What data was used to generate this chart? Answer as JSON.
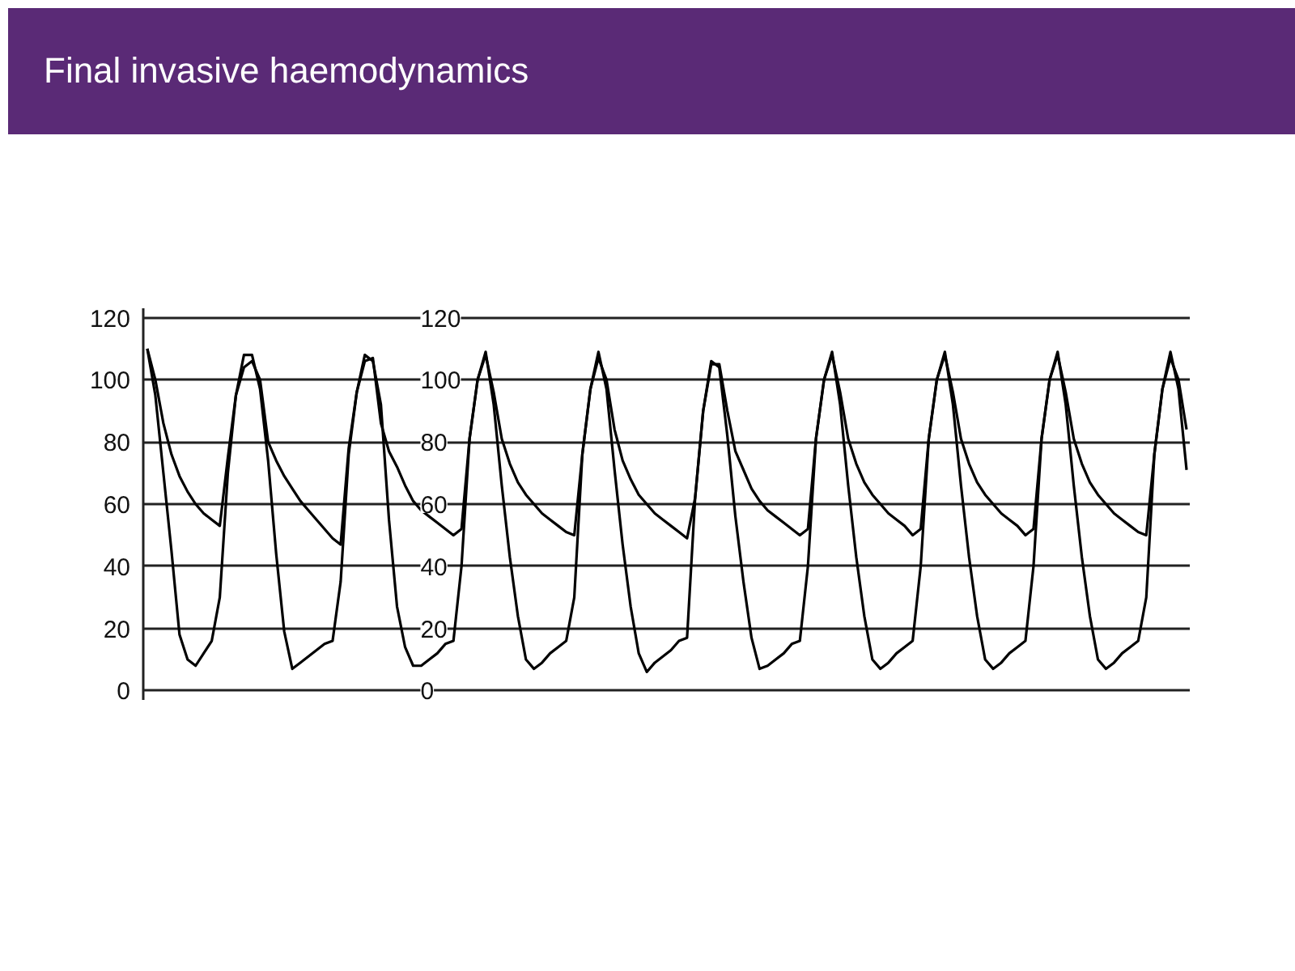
{
  "chart_data": {
    "type": "line",
    "title": "Final invasive haemodynamics",
    "categories": [
      null,
      null,
      null,
      null,
      null,
      null,
      null,
      null,
      null,
      null,
      null,
      null,
      null,
      null,
      null,
      null,
      null,
      null,
      null,
      null,
      null,
      null,
      null,
      null,
      null,
      null,
      null,
      null,
      null,
      null,
      null,
      null,
      null,
      null,
      null,
      null,
      null,
      null,
      null,
      null,
      null,
      null,
      null,
      null,
      null,
      null,
      null,
      null,
      null,
      null,
      null,
      null,
      null,
      null,
      null,
      null,
      null,
      null,
      null,
      null,
      null,
      null,
      null,
      null,
      null,
      null,
      null,
      null,
      null,
      null,
      null,
      null,
      null,
      null,
      null,
      null,
      null,
      null,
      null,
      null,
      null,
      null,
      null,
      null,
      null,
      null,
      null,
      null,
      null,
      null,
      null,
      null,
      null,
      null,
      null,
      null,
      null,
      null,
      null,
      null,
      null,
      null,
      null,
      null,
      null,
      null,
      null,
      null,
      null,
      null,
      null,
      null,
      null,
      null,
      null,
      null,
      null,
      null,
      null,
      null,
      null,
      null,
      null,
      null,
      null,
      null,
      null,
      null,
      null,
      null
    ],
    "series": [
      {
        "color": "#000000",
        "values": [
          110,
          95,
          70,
          45,
          18,
          10,
          8,
          12,
          16,
          30,
          70,
          95,
          108,
          108,
          97,
          74,
          44,
          19,
          7,
          9,
          11,
          13,
          15,
          16,
          35,
          76,
          96,
          108,
          106,
          92,
          55,
          27,
          14,
          8,
          8,
          10,
          12,
          15,
          16,
          40,
          81,
          100,
          109,
          92,
          66,
          43,
          24,
          10,
          7,
          9,
          12,
          14,
          16,
          30,
          76,
          97,
          109,
          97,
          71,
          47,
          27,
          12,
          6,
          9,
          11,
          13,
          16,
          17,
          62,
          90,
          106,
          104,
          82,
          56,
          35,
          17,
          7,
          8,
          10,
          12,
          15,
          16,
          40,
          81,
          100,
          109,
          92,
          66,
          43,
          24,
          10,
          7,
          9,
          12,
          14,
          16,
          40,
          81,
          100,
          109,
          92,
          66,
          43,
          24,
          10,
          7,
          9,
          12,
          14,
          16,
          40,
          81,
          100,
          109,
          92,
          66,
          43,
          24,
          10,
          7,
          9,
          12,
          14,
          16,
          30,
          76,
          97,
          109,
          97,
          71
        ]
      },
      {
        "color": "#000000",
        "values": [
          110,
          100,
          86,
          76,
          69,
          64,
          60,
          57,
          55,
          53,
          75,
          95,
          104,
          106,
          100,
          80,
          74,
          69,
          65,
          61,
          58,
          55,
          52,
          49,
          47,
          78,
          96,
          106,
          107,
          86,
          77,
          72,
          66,
          61,
          58,
          56,
          54,
          52,
          50,
          52,
          81,
          100,
          108,
          96,
          81,
          73,
          67,
          63,
          60,
          57,
          55,
          53,
          51,
          50,
          76,
          97,
          107,
          100,
          84,
          74,
          68,
          63,
          60,
          57,
          55,
          53,
          51,
          49,
          62,
          90,
          105,
          105,
          90,
          77,
          71,
          65,
          61,
          58,
          56,
          54,
          52,
          50,
          52,
          81,
          100,
          108,
          96,
          81,
          73,
          67,
          63,
          60,
          57,
          55,
          53,
          50,
          52,
          81,
          100,
          108,
          96,
          81,
          73,
          67,
          63,
          60,
          57,
          55,
          53,
          50,
          52,
          81,
          100,
          108,
          96,
          81,
          73,
          67,
          63,
          60,
          57,
          55,
          53,
          51,
          50,
          76,
          97,
          107,
          100,
          84
        ]
      }
    ],
    "ylim": [
      -3,
      123
    ],
    "yticks": [
      0,
      20,
      40,
      60,
      80,
      100,
      120
    ],
    "y2lim": [
      -3,
      123
    ],
    "y2ticks": [
      0,
      20,
      40,
      60,
      80,
      100,
      120
    ],
    "grid": "y",
    "tick_labels": "y"
  }
}
